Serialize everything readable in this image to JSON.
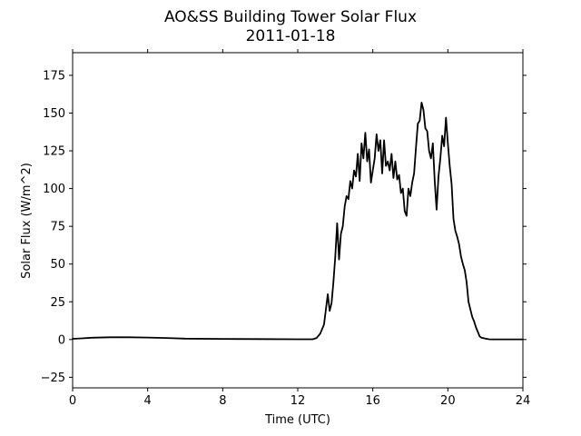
{
  "chart_data": {
    "type": "line",
    "title": "AO&SS Building Tower Solar Flux",
    "subtitle": "2011-01-18",
    "xlabel": "Time (UTC)",
    "ylabel": "Solar Flux (W/m^2)",
    "xlim": [
      0,
      24
    ],
    "ylim": [
      -32,
      190
    ],
    "xticks": [
      0,
      4,
      8,
      12,
      16,
      20,
      24
    ],
    "yticks": [
      -25,
      0,
      25,
      50,
      75,
      100,
      125,
      150,
      175
    ],
    "grid": false,
    "legend": "none",
    "line_color": "#000000",
    "series": [
      {
        "x": [
          0,
          0.5,
          1,
          2,
          3,
          4,
          5,
          6,
          8,
          10,
          12,
          12.8,
          13,
          13.2,
          13.4,
          13.5,
          13.6,
          13.7,
          13.8,
          13.9,
          14.0,
          14.1,
          14.2,
          14.3,
          14.4,
          14.5,
          14.6,
          14.7,
          14.8,
          14.9,
          15.0,
          15.1,
          15.2,
          15.3,
          15.4,
          15.5,
          15.6,
          15.7,
          15.8,
          15.9,
          16.0,
          16.1,
          16.2,
          16.3,
          16.4,
          16.5,
          16.6,
          16.7,
          16.8,
          16.9,
          17.0,
          17.1,
          17.2,
          17.3,
          17.4,
          17.5,
          17.6,
          17.7,
          17.8,
          17.9,
          18.0,
          18.1,
          18.2,
          18.3,
          18.4,
          18.5,
          18.6,
          18.7,
          18.8,
          18.9,
          19.0,
          19.1,
          19.2,
          19.3,
          19.4,
          19.5,
          19.6,
          19.7,
          19.8,
          19.9,
          20.0,
          20.1,
          20.2,
          20.3,
          20.4,
          20.5,
          20.6,
          20.7,
          20.8,
          20.9,
          21.0,
          21.1,
          21.2,
          21.3,
          21.4,
          21.5,
          21.6,
          21.7,
          21.8,
          21.9,
          22.0,
          22.1,
          22.2,
          22.3,
          22.4,
          22.5,
          22.6,
          22.7,
          22.8,
          22.9,
          23.0,
          23.2,
          23.5,
          24.0
        ],
        "y": [
          0.5,
          0.8,
          1.2,
          1.5,
          1.5,
          1.3,
          1.0,
          0.6,
          0.4,
          0.3,
          0.2,
          0.2,
          1,
          4,
          10,
          20,
          30,
          19,
          24,
          38,
          55,
          77,
          53,
          70,
          75,
          88,
          95,
          93,
          105,
          100,
          112,
          108,
          123,
          105,
          130,
          120,
          137,
          118,
          126,
          104,
          112,
          120,
          136,
          125,
          132,
          110,
          132,
          115,
          118,
          112,
          123,
          107,
          118,
          106,
          109,
          97,
          100,
          85,
          82,
          100,
          95,
          104,
          110,
          127,
          143,
          145,
          157,
          152,
          140,
          138,
          125,
          120,
          130,
          105,
          86,
          108,
          120,
          135,
          128,
          147,
          130,
          115,
          103,
          80,
          72,
          68,
          63,
          55,
          50,
          46,
          38,
          25,
          20,
          15,
          12,
          8,
          5,
          2,
          1.2,
          0.9,
          0.6,
          0.4,
          0.2,
          0.1,
          0.1,
          0.1,
          0.1,
          0.1,
          0.1,
          0.1,
          0.1,
          0.1,
          0.1,
          0.1
        ]
      }
    ]
  }
}
